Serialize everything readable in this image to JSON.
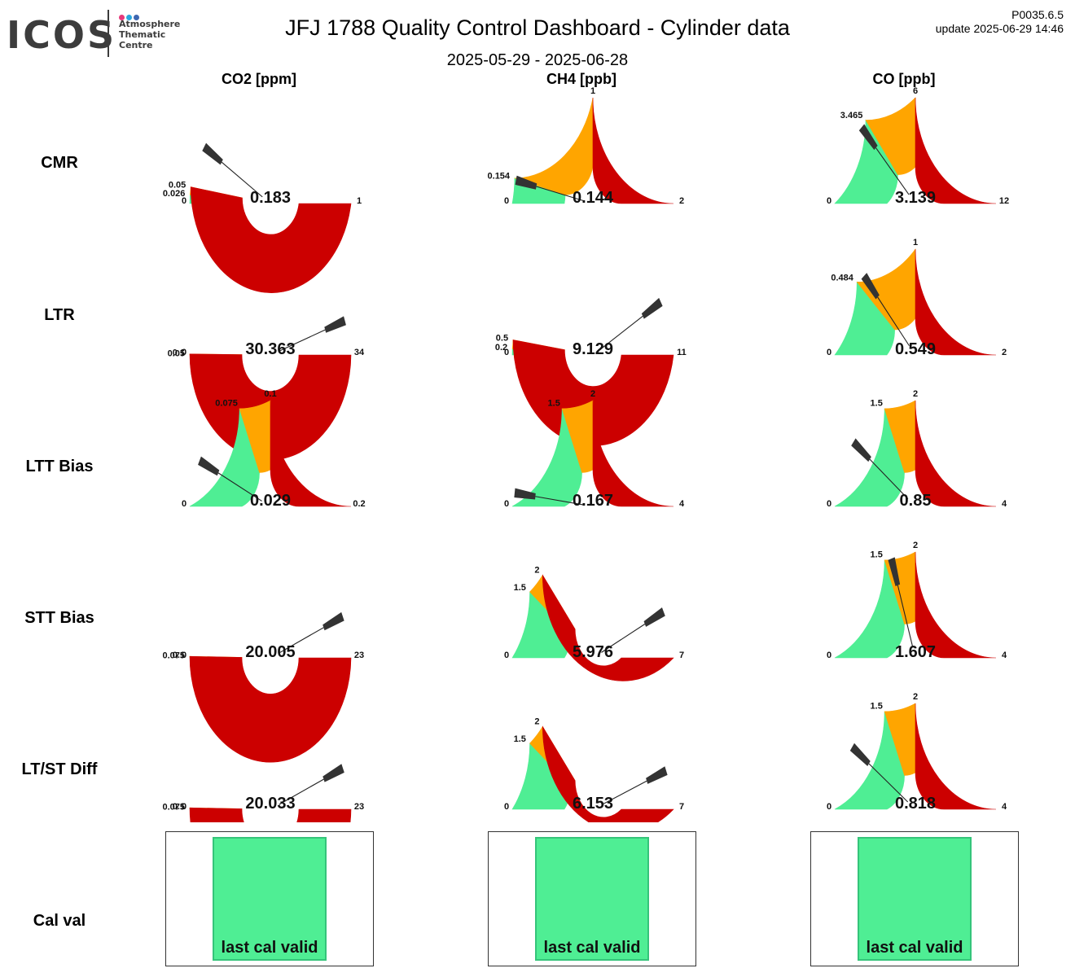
{
  "header": {
    "logo_text": "ICOS",
    "logo_subtitle": [
      "Atmosphere",
      "Thematic",
      "Centre"
    ],
    "logo_dot_colors": [
      "#e6397a",
      "#2aa7de",
      "#3e67b1"
    ],
    "title": "JFJ 1788 Quality Control Dashboard - Cylinder data",
    "date_range": "2025-05-29 - 2025-06-28",
    "version": "P0035.6.5",
    "update": "update  2025-06-29 14:46"
  },
  "colors": {
    "good": "#4fee94",
    "warn": "#ffa500",
    "bad": "#cc0000",
    "needle": "#333333"
  },
  "columns": [
    "CO2 [ppm]",
    "CH4 [ppb]",
    "CO [ppb]"
  ],
  "rows": [
    "CMR",
    "LTR",
    "LTT Bias",
    "STT Bias",
    "LT/ST Diff",
    "Cal val"
  ],
  "chart_data": {
    "type": "gauge",
    "gauges": [
      {
        "row": "CMR",
        "column": "CO2 [ppm]",
        "value": 0.183,
        "min": 0,
        "max": 1,
        "bands": [
          0.026,
          0.05
        ],
        "labels": [
          "0",
          "0.026",
          "0.05",
          "1"
        ]
      },
      {
        "row": "CMR",
        "column": "CH4 [ppb]",
        "value": 0.144,
        "min": 0,
        "max": 2,
        "bands": [
          0.154,
          1
        ],
        "labels": [
          "0",
          "0.154",
          "1",
          "2"
        ]
      },
      {
        "row": "CMR",
        "column": "CO [ppb]",
        "value": 3.139,
        "min": 0,
        "max": 12,
        "bands": [
          3.465,
          6
        ],
        "labels": [
          "0",
          "3.465",
          "6",
          "12"
        ]
      },
      {
        "row": "LTR",
        "column": "CO2 [ppm]",
        "value": 30.363,
        "min": 0,
        "max": 34,
        "bands": [
          0.05,
          0.1
        ],
        "labels": [
          "0",
          "0.05",
          "0.1",
          "34"
        ]
      },
      {
        "row": "LTR",
        "column": "CH4 [ppb]",
        "value": 9.129,
        "min": 0,
        "max": 11,
        "bands": [
          0.2,
          0.5
        ],
        "labels": [
          "0",
          "0.2",
          "0.5",
          "11"
        ]
      },
      {
        "row": "LTR",
        "column": "CO [ppb]",
        "value": 0.549,
        "min": 0,
        "max": 2,
        "bands": [
          0.484,
          1
        ],
        "labels": [
          "0",
          "0.484",
          "1",
          "2"
        ]
      },
      {
        "row": "LTT Bias",
        "column": "CO2 [ppm]",
        "value": 0.029,
        "min": 0,
        "max": 0.2,
        "bands": [
          0.075,
          0.1
        ],
        "labels": [
          "0",
          "0.075",
          "0.1",
          "0.2"
        ]
      },
      {
        "row": "LTT Bias",
        "column": "CH4 [ppb]",
        "value": 0.167,
        "min": 0,
        "max": 4,
        "bands": [
          1.5,
          2
        ],
        "labels": [
          "0",
          "1.5",
          "2",
          "4"
        ]
      },
      {
        "row": "LTT Bias",
        "column": "CO [ppb]",
        "value": 0.85,
        "min": 0,
        "max": 4,
        "bands": [
          1.5,
          2
        ],
        "labels": [
          "0",
          "1.5",
          "2",
          "4"
        ]
      },
      {
        "row": "STT Bias",
        "column": "CO2 [ppm]",
        "value": 20.005,
        "min": 0,
        "max": 23,
        "bands": [
          0.075,
          0.1
        ],
        "labels": [
          "0",
          "0.075",
          "0.1",
          "23"
        ]
      },
      {
        "row": "STT Bias",
        "column": "CH4 [ppb]",
        "value": 5.976,
        "min": 0,
        "max": 7,
        "bands": [
          1.5,
          2
        ],
        "labels": [
          "0",
          "1.5",
          "2",
          "7"
        ]
      },
      {
        "row": "STT Bias",
        "column": "CO [ppb]",
        "value": 1.607,
        "min": 0,
        "max": 4,
        "bands": [
          1.5,
          2
        ],
        "labels": [
          "0",
          "1.5",
          "2",
          "4"
        ]
      },
      {
        "row": "LT/ST Diff",
        "column": "CO2 [ppm]",
        "value": 20.033,
        "min": 0,
        "max": 23,
        "bands": [
          0.075,
          0.1
        ],
        "labels": [
          "0",
          "0.075",
          "0.1",
          "23"
        ]
      },
      {
        "row": "LT/ST Diff",
        "column": "CH4 [ppb]",
        "value": 6.153,
        "min": 0,
        "max": 7,
        "bands": [
          1.5,
          2
        ],
        "labels": [
          "0",
          "1.5",
          "2",
          "7"
        ]
      },
      {
        "row": "LT/ST Diff",
        "column": "CO [ppb]",
        "value": 0.818,
        "min": 0,
        "max": 4,
        "bands": [
          1.5,
          2
        ],
        "labels": [
          "0",
          "1.5",
          "2",
          "4"
        ]
      }
    ],
    "cal_val": [
      {
        "column": "CO2 [ppm]",
        "status": "last cal valid"
      },
      {
        "column": "CH4 [ppb]",
        "status": "last cal valid"
      },
      {
        "column": "CO [ppb]",
        "status": "last cal valid"
      }
    ]
  }
}
